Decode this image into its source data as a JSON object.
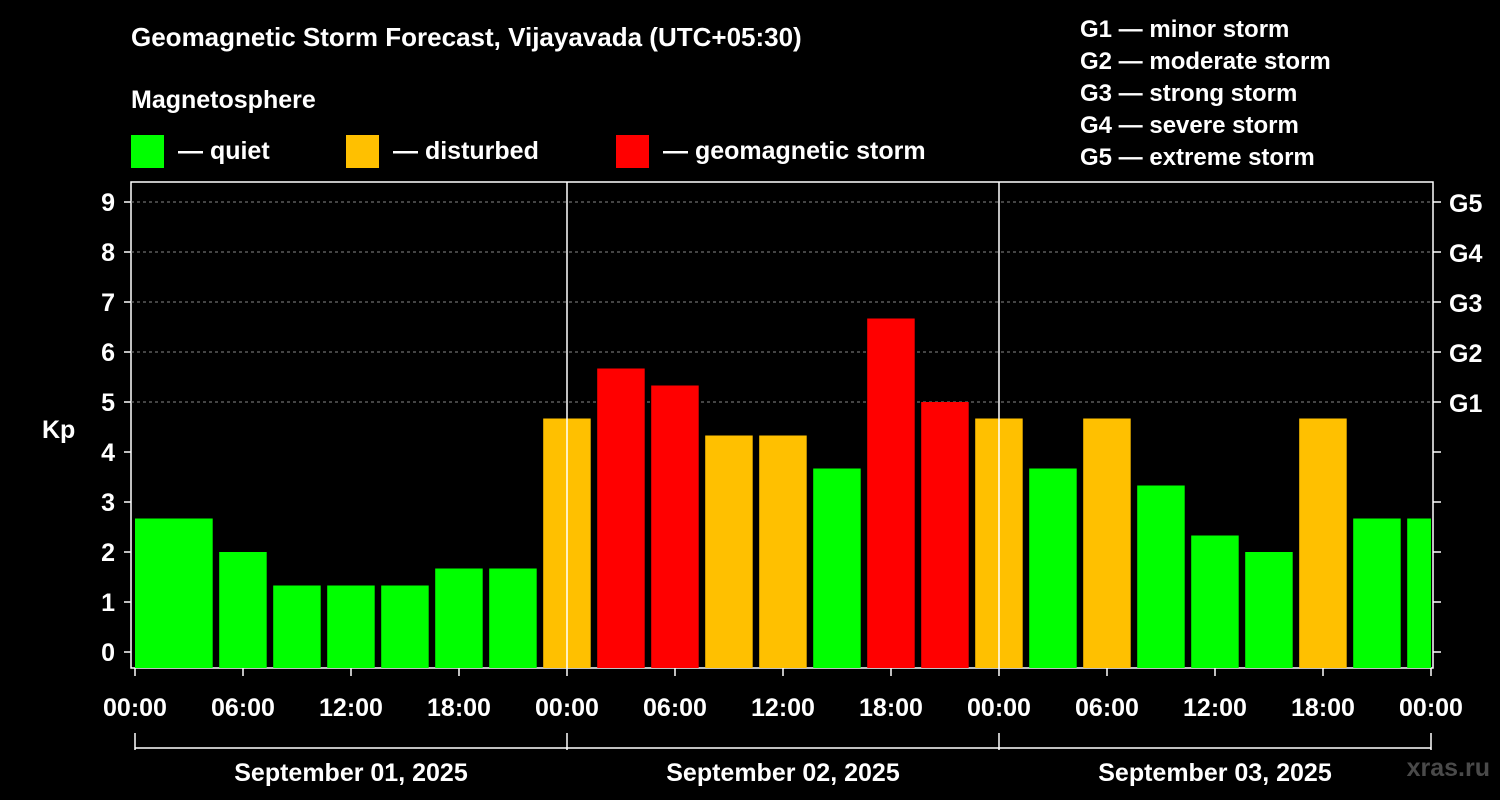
{
  "header": {
    "title": "Geomagnetic Storm Forecast, Vijayavada (UTC+05:30)",
    "subtitle": "Magnetosphere"
  },
  "legend": [
    {
      "label": "— quiet",
      "color": "#00ff00"
    },
    {
      "label": "— disturbed",
      "color": "#ffc000"
    },
    {
      "label": "— geomagnetic storm",
      "color": "#ff0000"
    }
  ],
  "g_scale": [
    "G1 — minor storm",
    "G2 — moderate storm",
    "G3 — strong storm",
    "G4 — severe storm",
    "G5 — extreme storm"
  ],
  "watermark": "xras.ru",
  "chart_data": {
    "type": "bar",
    "ylabel": "Kp",
    "ylim": [
      0,
      9
    ],
    "yticks": [
      "0",
      "1",
      "2",
      "3",
      "4",
      "5",
      "6",
      "7",
      "8",
      "9"
    ],
    "right_axis_labels": [
      {
        "value": 5,
        "label": "G1"
      },
      {
        "value": 6,
        "label": "G2"
      },
      {
        "value": 7,
        "label": "G3"
      },
      {
        "value": 8,
        "label": "G4"
      },
      {
        "value": 9,
        "label": "G5"
      }
    ],
    "xtick_labels": [
      "00:00",
      "06:00",
      "12:00",
      "18:00",
      "00:00",
      "06:00",
      "12:00",
      "18:00",
      "00:00",
      "06:00",
      "12:00",
      "18:00",
      "00:00"
    ],
    "days": [
      "September 01, 2025",
      "September 02, 2025",
      "September 03, 2025"
    ],
    "grid": true,
    "colors": {
      "quiet": "#00ff00",
      "disturbed": "#ffc000",
      "storm": "#ff0000"
    },
    "bars": [
      {
        "x": "01 00:00–02:30",
        "kp": 2.67,
        "level": "quiet"
      },
      {
        "x": "01 02:30–05:30",
        "kp": 2.67,
        "level": "quiet"
      },
      {
        "x": "01 05:30–08:30",
        "kp": 2.0,
        "level": "quiet"
      },
      {
        "x": "01 08:30–11:30",
        "kp": 1.33,
        "level": "quiet"
      },
      {
        "x": "01 11:30–14:30",
        "kp": 1.33,
        "level": "quiet"
      },
      {
        "x": "01 14:30–17:30",
        "kp": 1.33,
        "level": "quiet"
      },
      {
        "x": "01 17:30–20:30",
        "kp": 1.67,
        "level": "quiet"
      },
      {
        "x": "01 20:30–23:30",
        "kp": 1.67,
        "level": "quiet"
      },
      {
        "x": "01 23:30–02 02:30",
        "kp": 4.67,
        "level": "disturbed"
      },
      {
        "x": "02 02:30–05:30",
        "kp": 5.67,
        "level": "storm"
      },
      {
        "x": "02 05:30–08:30",
        "kp": 5.33,
        "level": "storm"
      },
      {
        "x": "02 08:30–11:30",
        "kp": 4.33,
        "level": "disturbed"
      },
      {
        "x": "02 11:30–14:30",
        "kp": 4.33,
        "level": "disturbed"
      },
      {
        "x": "02 14:30–17:30",
        "kp": 3.67,
        "level": "quiet"
      },
      {
        "x": "02 17:30–20:30",
        "kp": 6.67,
        "level": "storm"
      },
      {
        "x": "02 20:30–23:30",
        "kp": 5.0,
        "level": "storm"
      },
      {
        "x": "02 23:30–03 02:30",
        "kp": 4.67,
        "level": "disturbed"
      },
      {
        "x": "03 02:30–05:30",
        "kp": 3.67,
        "level": "quiet"
      },
      {
        "x": "03 05:30–08:30",
        "kp": 4.67,
        "level": "disturbed"
      },
      {
        "x": "03 08:30–11:30",
        "kp": 3.33,
        "level": "quiet"
      },
      {
        "x": "03 11:30–14:30",
        "kp": 2.33,
        "level": "quiet"
      },
      {
        "x": "03 14:30–17:30",
        "kp": 2.0,
        "level": "quiet"
      },
      {
        "x": "03 17:30–20:30",
        "kp": 4.67,
        "level": "disturbed"
      },
      {
        "x": "03 20:30–23:30",
        "kp": 2.67,
        "level": "quiet"
      },
      {
        "x": "03 23:30–24:00",
        "kp": 2.67,
        "level": "quiet"
      }
    ]
  }
}
